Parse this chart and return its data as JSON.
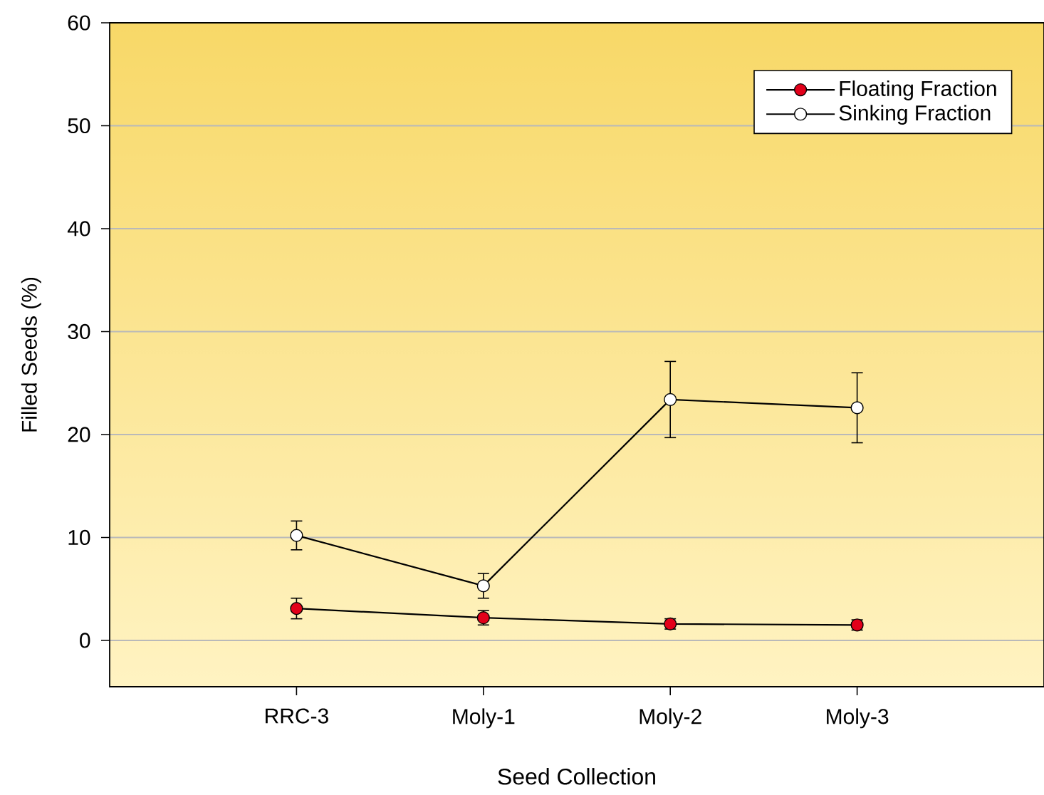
{
  "chart_data": {
    "type": "line",
    "xlabel": "Seed Collection",
    "ylabel": "Filled Seeds (%)",
    "categories": [
      "RRC-3",
      "Moly-1",
      "Moly-2",
      "Moly-3"
    ],
    "series": [
      {
        "name": "Floating Fraction",
        "color": "#e2001a",
        "values": [
          3.1,
          2.2,
          1.6,
          1.5
        ],
        "errors": [
          1.0,
          0.7,
          0.5,
          0.5
        ]
      },
      {
        "name": "Sinking Fraction",
        "color": "#ffffff",
        "values": [
          10.2,
          5.3,
          23.4,
          22.6
        ],
        "errors": [
          1.4,
          1.2,
          3.7,
          3.4
        ]
      }
    ],
    "ylim": [
      -4.5,
      60
    ],
    "yticks": [
      0,
      10,
      20,
      30,
      40,
      50,
      60
    ],
    "grid": "y",
    "legend": "top right",
    "marker": "circle",
    "line_style": "solid"
  }
}
